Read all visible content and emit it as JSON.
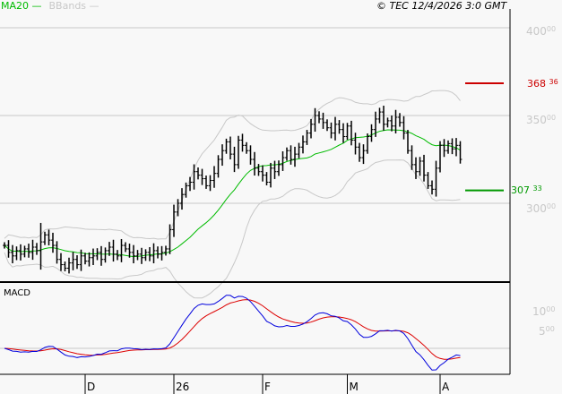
{
  "chart_data": {
    "type": "ohlc-bar",
    "legend": [
      {
        "name": "MA20",
        "color": "#00bb00"
      },
      {
        "name": "BBands",
        "color": "#c8c8c8"
      }
    ],
    "copyright": "© TEC 12/4/2026 3:0 GMT",
    "price_axis": {
      "ticks": [
        {
          "int": "400",
          "dec": "00",
          "value": 400
        },
        {
          "int": "350",
          "dec": "00",
          "value": 350
        },
        {
          "int": "300",
          "dec": "00",
          "value": 300
        }
      ],
      "ylim": [
        257,
        416
      ]
    },
    "resistance": {
      "int": "368",
      "dec": "36",
      "value": 368.36,
      "color": "#cc0000"
    },
    "support": {
      "int": "307",
      "dec": "33",
      "value": 307.33,
      "color": "#009900"
    },
    "closes": [
      276,
      272,
      270,
      273,
      271,
      274,
      272,
      275,
      273,
      278,
      282,
      279,
      276,
      268,
      265,
      263,
      266,
      268,
      265,
      270,
      267,
      269,
      270,
      272,
      268,
      273,
      275,
      271,
      270,
      276,
      274,
      272,
      270,
      271,
      269,
      272,
      270,
      273,
      271,
      272,
      274,
      285,
      295,
      300,
      305,
      310,
      312,
      318,
      316,
      314,
      310,
      313,
      317,
      325,
      330,
      335,
      328,
      322,
      336,
      333,
      330,
      325,
      320,
      318,
      316,
      312,
      320,
      318,
      322,
      326,
      330,
      325,
      328,
      332,
      335,
      340,
      345,
      350,
      348,
      346,
      343,
      340,
      345,
      342,
      338,
      344,
      336,
      332,
      326,
      330,
      338,
      342,
      348,
      352,
      345,
      347,
      344,
      349,
      346,
      340,
      330,
      322,
      318,
      324,
      316,
      310,
      308,
      320,
      333,
      330,
      334,
      331,
      333,
      325
    ],
    "macd": {
      "label": "MACD",
      "ticks": [
        {
          "int": "10",
          "dec": "00",
          "value": 10
        },
        {
          "int": "5",
          "dec": "00",
          "value": 5
        }
      ],
      "macd_color": "#0000dd",
      "signal_color": "#dd0000"
    },
    "x_labels": [
      {
        "label": "D",
        "index": 20
      },
      {
        "label": "26",
        "index": 42
      },
      {
        "label": "F",
        "index": 64
      },
      {
        "label": "M",
        "index": 85
      },
      {
        "label": "A",
        "index": 108
      }
    ]
  }
}
